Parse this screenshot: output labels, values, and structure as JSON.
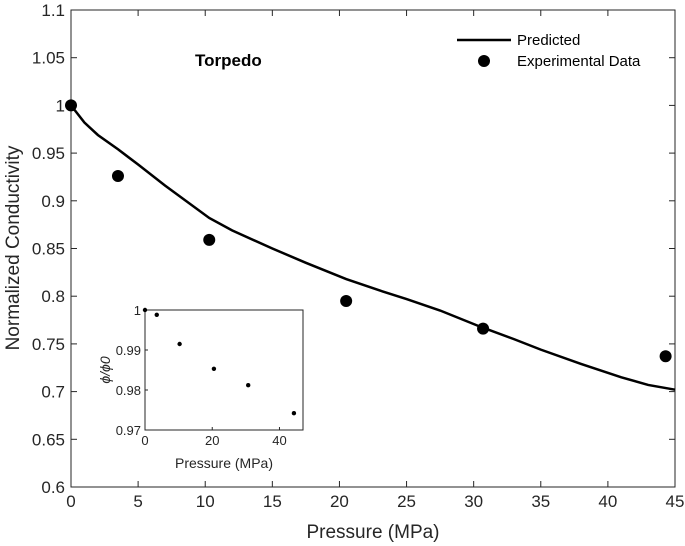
{
  "chart_data": {
    "type": "line+scatter",
    "main": {
      "xlabel": "Pressure (MPa)",
      "ylabel": "Normalized Conductivity",
      "xlim": [
        0,
        45
      ],
      "ylim": [
        0.6,
        1.1
      ],
      "xticks": [
        0,
        5,
        10,
        15,
        20,
        25,
        30,
        35,
        40,
        45
      ],
      "xtick_labels": [
        "0",
        "5",
        "10",
        "15",
        "20",
        "25",
        "30",
        "35",
        "40",
        "45"
      ],
      "yticks": [
        0.6,
        0.65,
        0.7,
        0.75,
        0.8,
        0.85,
        0.9,
        0.95,
        1.0,
        1.05,
        1.1
      ],
      "ytick_labels": [
        "0.6",
        "0.65",
        "0.7",
        "0.75",
        "0.8",
        "0.85",
        "0.9",
        "0.95",
        "1",
        "1.05",
        "1.1"
      ],
      "annotation": "Torpedo",
      "legend": {
        "position": "top-right",
        "entries": [
          {
            "label": "Predicted",
            "kind": "line"
          },
          {
            "label": "Experimental Data",
            "kind": "marker"
          }
        ]
      },
      "series": [
        {
          "name": "Predicted",
          "kind": "line",
          "x": [
            0,
            1,
            2,
            3.5,
            5,
            7,
            10.3,
            12,
            15,
            17.5,
            20.5,
            23,
            25,
            27.5,
            30.5,
            33,
            35,
            38,
            41,
            43,
            45
          ],
          "y": [
            1.0,
            0.982,
            0.969,
            0.954,
            0.938,
            0.916,
            0.882,
            0.869,
            0.85,
            0.835,
            0.818,
            0.806,
            0.797,
            0.785,
            0.768,
            0.755,
            0.744,
            0.729,
            0.715,
            0.707,
            0.702
          ]
        },
        {
          "name": "Experimental Data",
          "kind": "scatter",
          "x": [
            0,
            3.5,
            10.3,
            20.5,
            30.7,
            44.3
          ],
          "y": [
            1.0,
            0.926,
            0.859,
            0.795,
            0.766,
            0.737
          ]
        }
      ]
    },
    "inset": {
      "xlabel": "Pressure (MPa)",
      "ylabel": "ϕ/ϕ0",
      "xlim": [
        0,
        47
      ],
      "ylim": [
        0.97,
        1.0
      ],
      "xticks": [
        0,
        20,
        40
      ],
      "xtick_labels": [
        "0",
        "20",
        "40"
      ],
      "yticks": [
        0.97,
        0.98,
        0.99,
        1.0
      ],
      "ytick_labels": [
        "0.97",
        "0.98",
        "0.99",
        "1"
      ],
      "series": [
        {
          "name": "inset-points",
          "kind": "scatter",
          "x": [
            0,
            3.5,
            10.3,
            20.5,
            30.7,
            44.3
          ],
          "y": [
            1.0,
            0.9988,
            0.9915,
            0.9853,
            0.9812,
            0.9742
          ]
        }
      ]
    }
  }
}
